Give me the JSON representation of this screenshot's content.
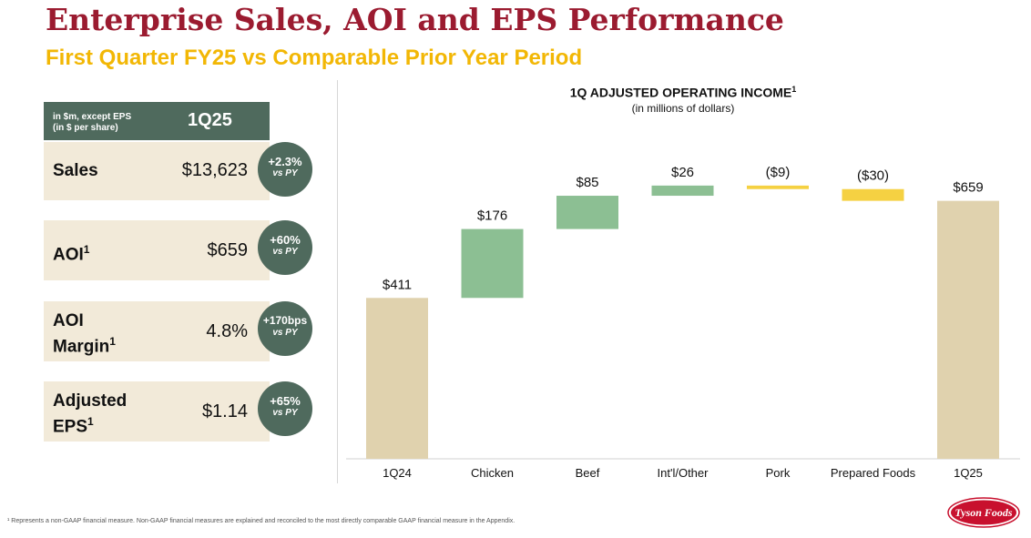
{
  "header": {
    "title": "Enterprise Sales, AOI and EPS Performance",
    "subtitle": "First Quarter FY25 vs Comparable Prior Year Period"
  },
  "kpi": {
    "unit_line1": "in $m, except EPS",
    "unit_line2": "(in $ per share)",
    "period": "1Q25",
    "rows": [
      {
        "label": "Sales",
        "sup": "",
        "value": "$13,623",
        "change": "+2.3%",
        "vs": "vs PY"
      },
      {
        "label": "AOI",
        "sup": "1",
        "value": "$659",
        "change": "+60%",
        "vs": "vs PY"
      },
      {
        "label_line1": "AOI",
        "label_line2": "Margin",
        "sup": "1",
        "value": "4.8%",
        "change": "+170bps",
        "vs": "vs PY"
      },
      {
        "label_line1": "Adjusted",
        "label_line2": "EPS",
        "sup": "1",
        "value": "$1.14",
        "change": "+65%",
        "vs": "vs PY"
      }
    ]
  },
  "chart_data": {
    "type": "bar",
    "subtype": "waterfall",
    "title": "1Q ADJUSTED OPERATING INCOME",
    "title_sup": "1",
    "subtitle": "(in millions of dollars)",
    "categories": [
      "1Q24",
      "Chicken",
      "Beef",
      "Int'l/Other",
      "Pork",
      "Prepared Foods",
      "1Q25"
    ],
    "values": [
      411,
      176,
      85,
      26,
      -9,
      -30,
      659
    ],
    "labels": [
      "$411",
      "$176",
      "$85",
      "$26",
      "($9)",
      "($30)",
      "$659"
    ],
    "kinds": [
      "total",
      "delta",
      "delta",
      "delta",
      "delta",
      "delta",
      "total"
    ],
    "ylim": [
      0,
      700
    ],
    "colors": {
      "total": "#e0d2ae",
      "increase": "#8cbf93",
      "decrease": "#f5d142"
    }
  },
  "footnote": "¹ Represents a non-GAAP financial measure. Non-GAAP financial measures are explained and reconciled to the most directly comparable GAAP financial measure in the Appendix.",
  "logo_text": "Tyson Foods"
}
